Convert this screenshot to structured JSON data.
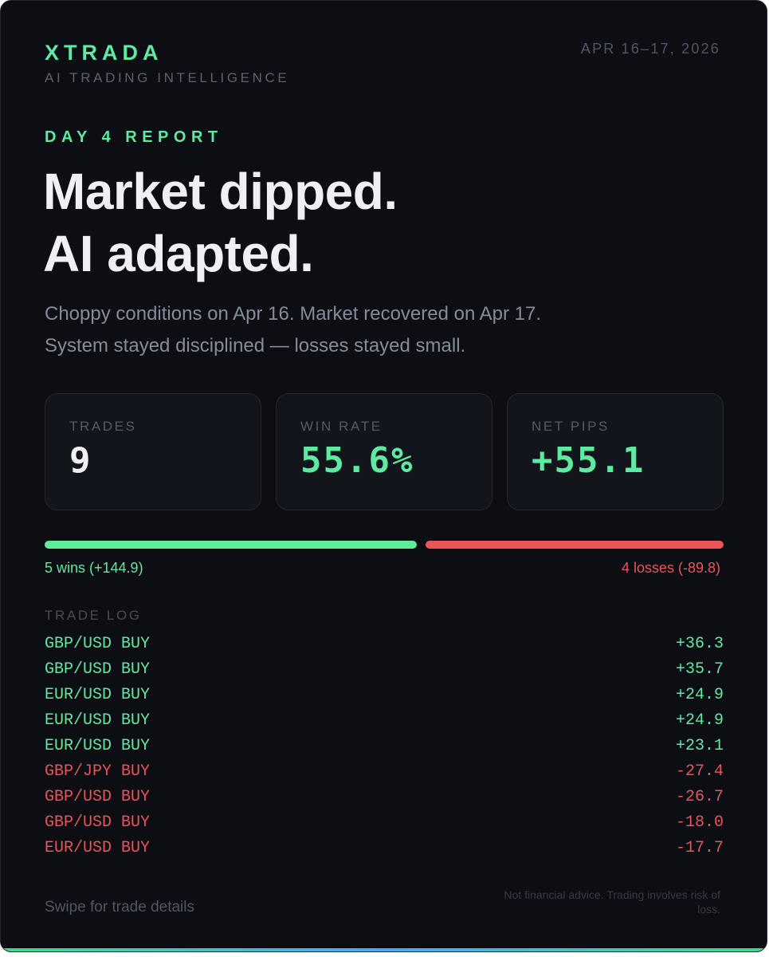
{
  "brand": {
    "name": "XTRADA",
    "tagline": "AI TRADING INTELLIGENCE"
  },
  "date_range": "APR 16–17, 2026",
  "report": {
    "day_label": "DAY 4 REPORT",
    "headline_line1": "Market dipped.",
    "headline_line2": "AI adapted.",
    "subtext_line1": "Choppy conditions on Apr 16. Market recovered on Apr 17.",
    "subtext_line2": "System stayed disciplined — losses stayed small."
  },
  "stats": [
    {
      "label": "TRADES",
      "value": "9"
    },
    {
      "label": "WIN RATE",
      "value": "55.6%"
    },
    {
      "label": "NET PIPS",
      "value": "+55.1"
    }
  ],
  "win_loss": {
    "wins_label": "5 wins (+144.9)",
    "losses_label": "4 losses (-89.8)",
    "win_fraction": 0.556
  },
  "trade_log": {
    "title": "TRADE LOG",
    "rows": [
      {
        "pair": "GBP/USD BUY",
        "pips": "+36.3",
        "result": "win"
      },
      {
        "pair": "GBP/USD BUY",
        "pips": "+35.7",
        "result": "win"
      },
      {
        "pair": "EUR/USD BUY",
        "pips": "+24.9",
        "result": "win"
      },
      {
        "pair": "EUR/USD BUY",
        "pips": "+24.9",
        "result": "win"
      },
      {
        "pair": "EUR/USD BUY",
        "pips": "+23.1",
        "result": "win"
      },
      {
        "pair": "GBP/JPY BUY",
        "pips": "-27.4",
        "result": "loss"
      },
      {
        "pair": "GBP/USD BUY",
        "pips": "-26.7",
        "result": "loss"
      },
      {
        "pair": "GBP/USD BUY",
        "pips": "-18.0",
        "result": "loss"
      },
      {
        "pair": "EUR/USD BUY",
        "pips": "-17.7",
        "result": "loss"
      }
    ]
  },
  "footer": {
    "swipe_text": "Swipe for trade details",
    "disclaimer": "Not financial advice. Trading involves risk of loss."
  },
  "colors": {
    "background": "#0c0e14",
    "accent_green": "#5eeaa0",
    "loss_red": "#ea5557"
  }
}
